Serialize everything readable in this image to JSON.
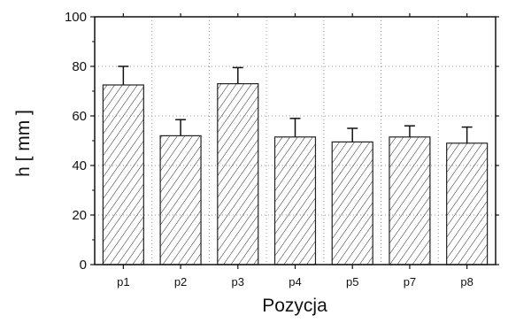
{
  "chart_data": {
    "type": "bar",
    "categories": [
      "p1",
      "p2",
      "p3",
      "p4",
      "p5",
      "p7",
      "p8"
    ],
    "values": [
      72.5,
      52,
      73,
      51.5,
      49.5,
      51.5,
      49
    ],
    "errors": [
      7.5,
      6.5,
      6.5,
      7.5,
      5.5,
      4.5,
      6.5
    ],
    "xlabel": "Pozycja",
    "ylabel": "h [ mm ]",
    "ylim": [
      0,
      100
    ],
    "yticks": [
      0,
      20,
      40,
      60,
      80,
      100
    ],
    "grid": true,
    "bar_fill": "hatched",
    "colors": {
      "bar_stroke": "#222222",
      "grid": "#9a9a9a",
      "axis": "#111111"
    }
  }
}
